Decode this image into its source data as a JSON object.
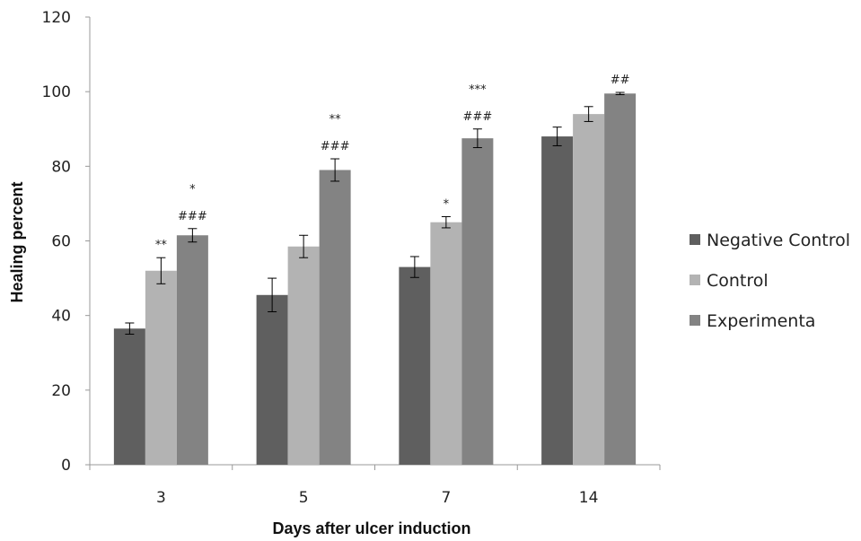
{
  "chart_data": {
    "type": "bar",
    "xlabel": "Days after ulcer induction",
    "ylabel": "Healing percent",
    "ylim": [
      0,
      120
    ],
    "yticks": [
      "0",
      "20",
      "40",
      "60",
      "80",
      "100",
      "120"
    ],
    "categories": [
      "3",
      "5",
      "7",
      "14"
    ],
    "grid": false,
    "legend_position": "right",
    "series": [
      {
        "name": "Negative Control",
        "color": "#5f5f5f",
        "values": [
          36.5,
          45.5,
          53,
          88
        ],
        "errors": [
          1.5,
          4.5,
          2.8,
          2.5
        ],
        "annotations": [
          [],
          [],
          [],
          []
        ]
      },
      {
        "name": "Control",
        "color": "#b3b3b3",
        "values": [
          52,
          58.5,
          65,
          94
        ],
        "errors": [
          3.5,
          3,
          1.5,
          2
        ],
        "annotations": [
          [
            "**"
          ],
          [],
          [
            "*"
          ],
          []
        ]
      },
      {
        "name": "Experimenta",
        "color": "#838383",
        "values": [
          61.5,
          79,
          87.5,
          99.5
        ],
        "errors": [
          1.8,
          3,
          2.5,
          0.3
        ],
        "annotations": [
          [
            "*",
            "###"
          ],
          [
            "**",
            "###"
          ],
          [
            "***",
            "###"
          ],
          [
            "##"
          ]
        ]
      }
    ]
  }
}
